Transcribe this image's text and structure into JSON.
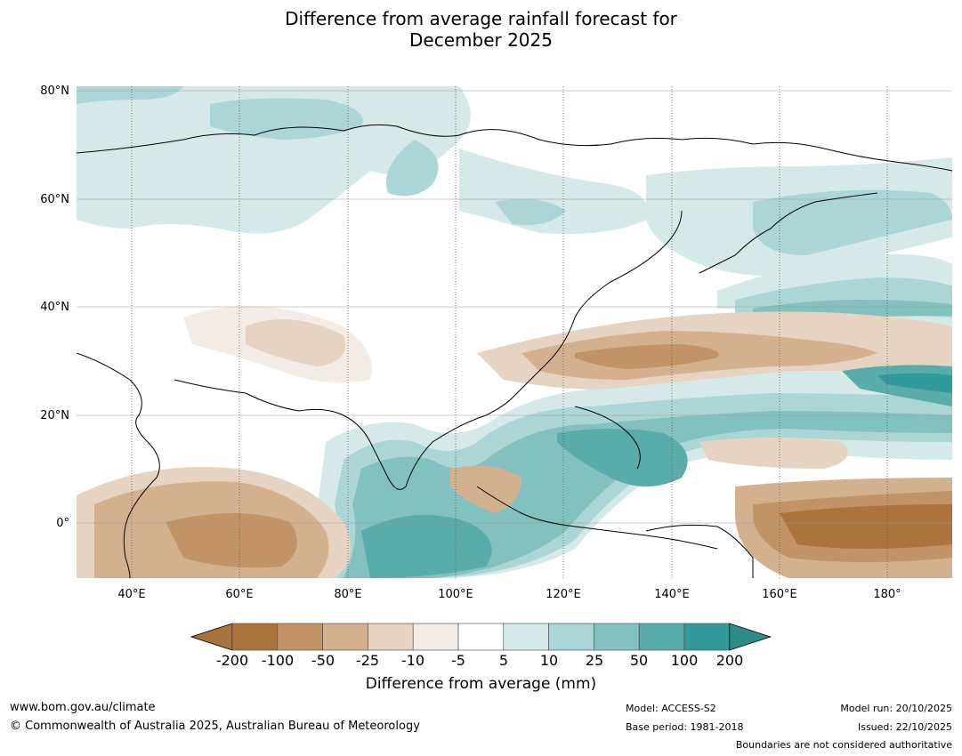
{
  "title_line1": "Difference from average rainfall forecast for",
  "title_line2": "December 2025",
  "lat_labels": [
    "80°N",
    "60°N",
    "40°N",
    "20°N",
    "0°"
  ],
  "lon_labels": [
    "40°E",
    "60°E",
    "80°E",
    "100°E",
    "120°E",
    "140°E",
    "160°E",
    "180°"
  ],
  "colorbar": {
    "title": "Difference from average (mm)",
    "ticks": [
      "-200",
      "-100",
      "-50",
      "-25",
      "-10",
      "-5",
      "5",
      "10",
      "25",
      "50",
      "100",
      "200"
    ],
    "colors": [
      "#a6723d",
      "#ab743c",
      "#c29366",
      "#d4b18e",
      "#e6d3c2",
      "#f2ebe6",
      "#ffffff",
      "#d4e9e8",
      "#acd6d6",
      "#82c1c0",
      "#5aacab",
      "#329a99",
      "#2e8b89"
    ]
  },
  "footer": {
    "url": "www.bom.gov.au/climate",
    "copyright": "© Commonwealth of Australia 2025, Australian Bureau of Meteorology",
    "model": "Model: ACCESS-S2",
    "base_period": "Base period: 1981-2018",
    "model_run": "Model run: 20/10/2025",
    "issued": "Issued: 22/10/2025",
    "boundaries": "Boundaries are not considered authoritative"
  }
}
